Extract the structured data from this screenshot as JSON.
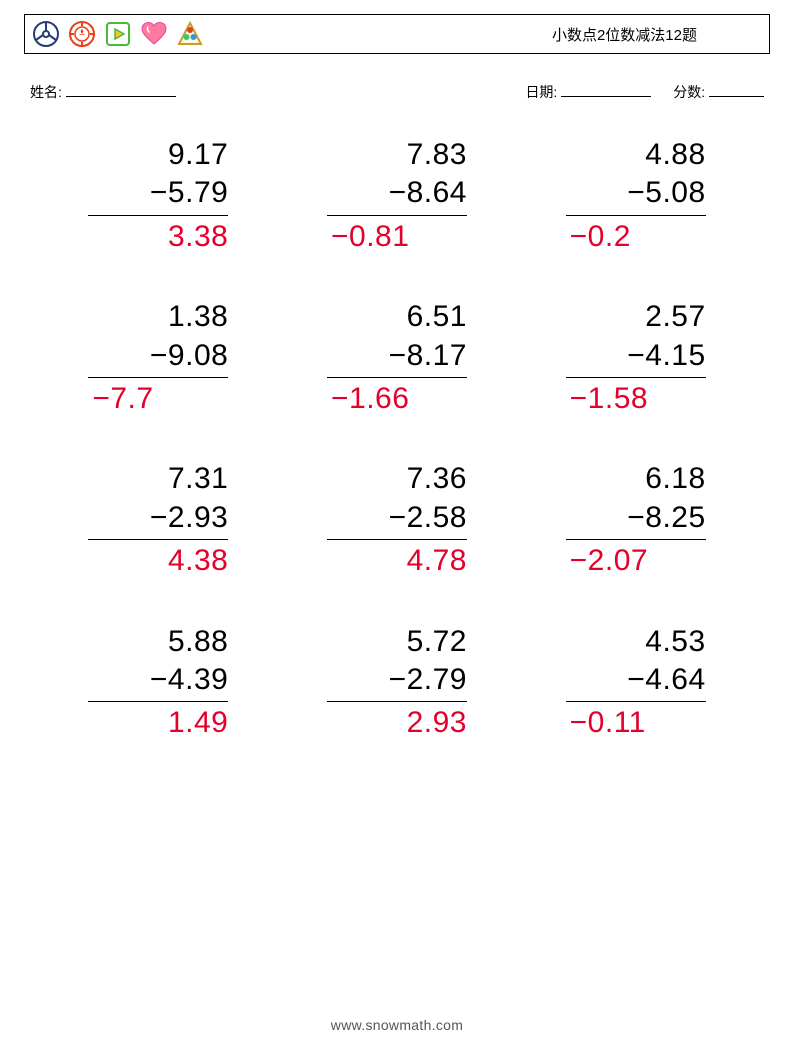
{
  "header": {
    "title": "小数点2位数减法12题",
    "title_fontsize": 15,
    "border_color": "#000000",
    "icons": [
      {
        "name": "wheel-icon",
        "stroke": "#273c75"
      },
      {
        "name": "chip-icon",
        "stroke": "#e84118",
        "fill": "#ffffff"
      },
      {
        "name": "play-icon",
        "box": "#44bd32",
        "tri": "#fbc531"
      },
      {
        "name": "heart-icon",
        "fill": "#ff7aa0"
      },
      {
        "name": "balls-icon",
        "tri": "#f5cd79",
        "b1": "#e84118",
        "b2": "#2ecc71",
        "b3": "#3498db"
      }
    ]
  },
  "meta": {
    "name_label": "姓名:",
    "date_label": "日期:",
    "score_label": "分数:",
    "label_fontsize": 14
  },
  "style": {
    "problem_fontsize": 30,
    "answer_color": "#e4002b",
    "rule_color": "#000000",
    "text_color": "#000000",
    "background": "#ffffff",
    "cols": 3,
    "rows": 4
  },
  "problems": [
    {
      "a": "9.17",
      "b": "−5.79",
      "ans": "3.38"
    },
    {
      "a": "7.83",
      "b": "−8.64",
      "ans": "−0.81"
    },
    {
      "a": "4.88",
      "b": "−5.08",
      "ans": "−0.2"
    },
    {
      "a": "1.38",
      "b": "−9.08",
      "ans": "−7.7"
    },
    {
      "a": "6.51",
      "b": "−8.17",
      "ans": "−1.66"
    },
    {
      "a": "2.57",
      "b": "−4.15",
      "ans": "−1.58"
    },
    {
      "a": "7.31",
      "b": "−2.93",
      "ans": "4.38"
    },
    {
      "a": "7.36",
      "b": "−2.58",
      "ans": "4.78"
    },
    {
      "a": "6.18",
      "b": "−8.25",
      "ans": "−2.07"
    },
    {
      "a": "5.88",
      "b": "−4.39",
      "ans": "1.49"
    },
    {
      "a": "5.72",
      "b": "−2.79",
      "ans": "2.93"
    },
    {
      "a": "4.53",
      "b": "−4.64",
      "ans": "−0.11"
    }
  ],
  "footer": {
    "text": "www.snowmath.com",
    "color": "#555555",
    "fontsize": 14
  }
}
